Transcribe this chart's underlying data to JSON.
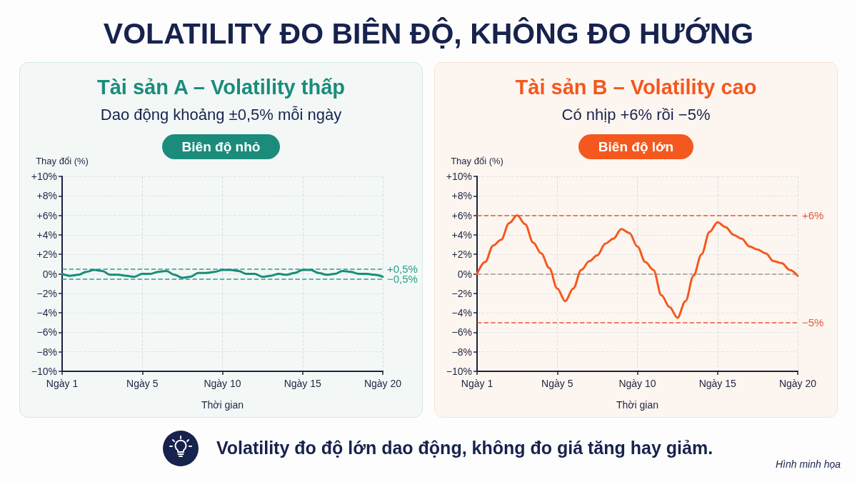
{
  "chart_data": [
    {
      "type": "other",
      "title": "VOLATILITY ĐO BIÊN ĐỘ, KHÔNG ĐO HƯỚNG",
      "annotations": [
        "Volatility đo độ lớn dao động, không đo giá tăng hay giảm.",
        "Hình minh họa"
      ]
    },
    {
      "type": "line",
      "title": "Tài sản A – Volatility thấp",
      "subtitle": "Dao động khoảng ±0,5% mỗi ngày",
      "annotations": [
        "Biên độ nhỏ"
      ],
      "xlabel": "Thời gian",
      "ylabel": "Thay đổi (%)",
      "categories": [
        "Ngày 1",
        null,
        null,
        null,
        null,
        null,
        null,
        null,
        null,
        null,
        "Ngày 5",
        null,
        null,
        null,
        null,
        null,
        null,
        null,
        null,
        null,
        "Ngày 10",
        null,
        null,
        null,
        null,
        null,
        null,
        null,
        null,
        null,
        "Ngày 15",
        null,
        null,
        null,
        null,
        null,
        null,
        null,
        null,
        null,
        "Ngày 20"
      ],
      "series": [
        {
          "color": "#1b8c7c",
          "values": [
            0,
            -0.2,
            -0.1,
            0.2,
            0.4,
            0.3,
            -0.1,
            -0.1,
            -0.2,
            -0.3,
            0,
            0,
            0.2,
            0.3,
            -0.1,
            -0.4,
            -0.3,
            0.1,
            0.1,
            0.2,
            0.4,
            0.4,
            0.3,
            0,
            0,
            -0.3,
            -0.2,
            0,
            -0.1,
            0.1,
            0.4,
            0.4,
            0.1,
            -0.1,
            0,
            0.3,
            0.2,
            0,
            0,
            -0.1,
            -0.3
          ]
        }
      ],
      "ylim": [
        -10,
        10
      ],
      "yticks": [
        {
          "value": -10,
          "label": "−10%"
        },
        {
          "value": -8,
          "label": "−8%"
        },
        {
          "value": -6,
          "label": "−6%"
        },
        {
          "value": -4,
          "label": "−4%"
        },
        {
          "value": -2,
          "label": "−2%"
        },
        {
          "value": 0,
          "label": "0%"
        },
        {
          "value": 2,
          "label": "+2%"
        },
        {
          "value": 4,
          "label": "+4%"
        },
        {
          "value": 6,
          "label": "+6%"
        },
        {
          "value": 8,
          "label": "+8%"
        },
        {
          "value": 10,
          "label": "+10%"
        }
      ],
      "ref_lines": [
        {
          "axis": "y",
          "value": 0.5,
          "label": "+0,5%",
          "color": "#2a9d8a",
          "line_style": "dashed"
        },
        {
          "axis": "y",
          "value": -0.5,
          "label": "−0,5%",
          "color": "#2a9d8a",
          "line_style": "dashed"
        }
      ],
      "grid": true,
      "marker": "none",
      "line_style": "solid"
    },
    {
      "type": "line",
      "title": "Tài sản B – Volatility cao",
      "subtitle": "Có nhịp +6% rồi −5%",
      "annotations": [
        "Biên độ lớn"
      ],
      "xlabel": "Thời gian",
      "ylabel": "Thay đổi (%)",
      "categories": [
        "Ngày 1",
        null,
        null,
        null,
        null,
        null,
        null,
        null,
        null,
        null,
        "Ngày 5",
        null,
        null,
        null,
        null,
        null,
        null,
        null,
        null,
        null,
        "Ngày 10",
        null,
        null,
        null,
        null,
        null,
        null,
        null,
        null,
        null,
        "Ngày 15",
        null,
        null,
        null,
        null,
        null,
        null,
        null,
        null,
        null,
        "Ngày 20"
      ],
      "series": [
        {
          "color": "#f4581e",
          "values": [
            0,
            1.2,
            2.9,
            3.5,
            5.2,
            6,
            5.1,
            3.2,
            2.1,
            0.6,
            -1.5,
            -2.8,
            -1.5,
            0.4,
            1.3,
            1.9,
            3.1,
            3.6,
            4.6,
            4.2,
            2.8,
            1.2,
            0.4,
            -2.2,
            -3.4,
            -4.5,
            -2.8,
            -0.2,
            2,
            4.3,
            5.3,
            4.8,
            4,
            3.6,
            2.8,
            2.5,
            2.1,
            1.3,
            1.1,
            0.4,
            -0.2
          ]
        }
      ],
      "ylim": [
        -10,
        10
      ],
      "yticks": [
        {
          "value": -10,
          "label": "−10%"
        },
        {
          "value": -8,
          "label": "−8%"
        },
        {
          "value": -6,
          "label": "−6%"
        },
        {
          "value": -4,
          "label": "−4%"
        },
        {
          "value": -2,
          "label": "−2%"
        },
        {
          "value": 0,
          "label": "0%"
        },
        {
          "value": 2,
          "label": "+2%"
        },
        {
          "value": 4,
          "label": "+4%"
        },
        {
          "value": 6,
          "label": "+6%"
        },
        {
          "value": 8,
          "label": "+8%"
        },
        {
          "value": 10,
          "label": "+10%"
        }
      ],
      "ref_lines": [
        {
          "axis": "y",
          "value": 6,
          "label": "+6%",
          "color": "#e8553a",
          "line_style": "dashed"
        },
        {
          "axis": "y",
          "value": 0,
          "label": null,
          "color": "#9a9a9a",
          "line_style": "dashed"
        },
        {
          "axis": "y",
          "value": -5,
          "label": "−5%",
          "color": "#e8553a",
          "line_style": "dashed"
        }
      ],
      "grid": true,
      "marker": "none",
      "line_style": "solid"
    }
  ]
}
